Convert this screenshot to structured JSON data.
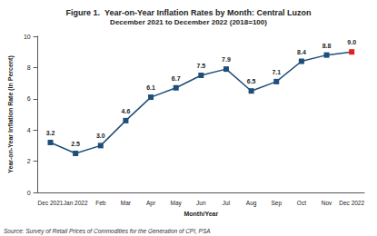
{
  "chart_data": {
    "type": "line",
    "title": "Figure 1.  Year-on-Year Inflation Rates by Month: Central Luzon",
    "subtitle": "December 2021 to December 2022 (2018=100)",
    "x_label": "Month/Year",
    "y_label": "Year-on-Year Inflation Rate (In Percent)",
    "annotations": [
      "Source: Survey of Retail Prices of Commodities for the Generation of CPI, PSA"
    ],
    "categories": [
      "Dec 2021",
      "Jan 2022",
      "Feb",
      "Mar",
      "Apr",
      "May",
      "Jun",
      "Jul",
      "Aug",
      "Sep",
      "Oct",
      "Nov",
      "Dec 2022"
    ],
    "values": [
      3.2,
      2.5,
      3.0,
      4.6,
      6.1,
      6.7,
      7.5,
      7.9,
      6.5,
      7.1,
      8.4,
      8.8,
      9.0
    ],
    "value_labels": [
      "3.2",
      "2.5",
      "3.0",
      "4.6",
      "6.1",
      "6.7",
      "7.5",
      "7.9",
      "6.5",
      "7.1",
      "8.4",
      "8.8",
      "9.0"
    ],
    "color": "#1f4e79",
    "colors": [
      "#1f4e79",
      "#1f4e79",
      "#1f4e79",
      "#1f4e79",
      "#1f4e79",
      "#1f4e79",
      "#1f4e79",
      "#1f4e79",
      "#1f4e79",
      "#1f4e79",
      "#1f4e79",
      "#1f4e79",
      "#e0201b"
    ],
    "marker": "square",
    "data_labels": true,
    "grid": false,
    "ylim": [
      0,
      10
    ],
    "yticks": [
      0,
      2,
      4,
      6,
      8,
      10
    ]
  }
}
